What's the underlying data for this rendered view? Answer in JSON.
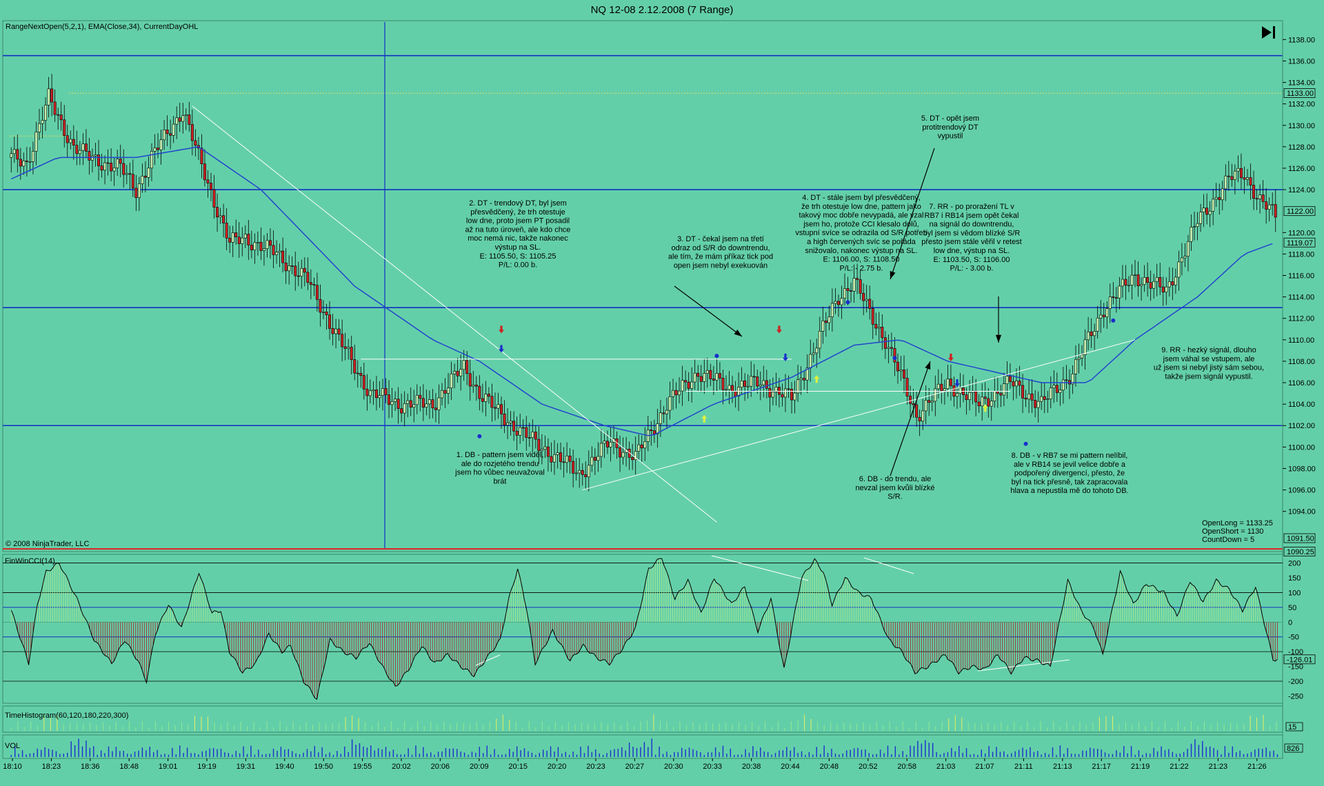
{
  "window": {
    "title": "NQ 12-08  2.12.2008 (7 Range)",
    "price_indicators": "RangeNextOpen(5,2,1), EMA(Close,34), CurrentDayOHL",
    "copyright": "© 2008 NinjaTrader, LLC",
    "cci_label": "FinWinCCI(14)",
    "histogram_label": "TimeHistogram(60,120,180,220,300)",
    "vol_label": "VOL",
    "stats": [
      "OpenLong = 1133.25",
      "OpenShort = 1130",
      "CountDown = 5"
    ]
  },
  "colors": {
    "background": "#63cfa9",
    "up_candle": "#c8f0b0",
    "down_candle": "#cc2222",
    "ema": "#2244cc",
    "sr_line": "#1030c0",
    "open_line": "#e0e060",
    "low_line": "#e02020",
    "cci_pos": "#a8e890",
    "cci_neg": "#a03030",
    "volume": "#1a2ecc"
  },
  "chart_data": [
    {
      "type": "line",
      "panel": "price",
      "title": "NQ 12-08  2.12.2008 (7 Range)",
      "x_ticks": [
        "18:10",
        "18:23",
        "18:36",
        "18:48",
        "19:01",
        "19:19",
        "19:31",
        "19:40",
        "19:50",
        "19:55",
        "20:02",
        "20:06",
        "20:09",
        "20:15",
        "20:20",
        "20:23",
        "20:27",
        "20:30",
        "20:33",
        "20:38",
        "20:44",
        "20:48",
        "20:52",
        "20:58",
        "21:03",
        "21:07",
        "21:11",
        "21:13",
        "21:17",
        "21:19",
        "21:22",
        "21:23",
        "21:26"
      ],
      "ylim": [
        1090.25,
        1139.5
      ],
      "y_ticks": [
        "1094.00",
        "1096.00",
        "1098.00",
        "1100.00",
        "1102.00",
        "1104.00",
        "1106.00",
        "1108.00",
        "1110.00",
        "1112.00",
        "1114.00",
        "1116.00",
        "1118.00",
        "1120.00",
        "1124.00",
        "1126.00",
        "1128.00",
        "1130.00",
        "1132.00",
        "1134.00",
        "1136.00",
        "1138.00"
      ],
      "price_tags": [
        {
          "value": 1133.0,
          "label": "1133.00"
        },
        {
          "value": 1122.0,
          "label": "1122.00"
        },
        {
          "value": 1119.07,
          "label": "1119.07"
        },
        {
          "value": 1091.5,
          "label": "1091.50"
        },
        {
          "value": 1090.25,
          "label": "1090.25"
        }
      ],
      "sr_levels": [
        1136.5,
        1124.0,
        1113.0,
        1102.0
      ],
      "open_level": 1133.0,
      "day_low": 1090.5,
      "close_path": [
        [
          0,
          1127
        ],
        [
          5,
          1126.5
        ],
        [
          12,
          1132.5
        ],
        [
          20,
          1128
        ],
        [
          25,
          1127
        ],
        [
          35,
          1126
        ],
        [
          40,
          1124
        ],
        [
          45,
          1127
        ],
        [
          55,
          1131.5
        ],
        [
          60,
          1127
        ],
        [
          70,
          1119
        ],
        [
          75,
          1119.5
        ],
        [
          85,
          1118
        ],
        [
          95,
          1115.5
        ],
        [
          105,
          1110
        ],
        [
          115,
          1105
        ],
        [
          125,
          1104
        ],
        [
          135,
          1104
        ],
        [
          145,
          1107.5
        ],
        [
          150,
          1105
        ],
        [
          155,
          1103.5
        ],
        [
          165,
          1101
        ],
        [
          175,
          1099
        ],
        [
          182,
          1097.5
        ],
        [
          192,
          1100.5
        ],
        [
          200,
          1099
        ],
        [
          210,
          1104
        ],
        [
          220,
          1107
        ],
        [
          230,
          1105.5
        ],
        [
          240,
          1106
        ],
        [
          250,
          1104.5
        ],
        [
          260,
          1111
        ],
        [
          265,
          1114
        ],
        [
          270,
          1115.5
        ],
        [
          275,
          1112.5
        ],
        [
          280,
          1110
        ],
        [
          290,
          1103
        ],
        [
          300,
          1106
        ],
        [
          310,
          1104
        ],
        [
          320,
          1106
        ],
        [
          330,
          1104
        ],
        [
          340,
          1107
        ],
        [
          350,
          1113
        ],
        [
          360,
          1116
        ],
        [
          370,
          1114.5
        ],
        [
          380,
          1121
        ],
        [
          390,
          1125
        ],
        [
          395,
          1125.5
        ],
        [
          400,
          1123
        ],
        [
          405,
          1121.5
        ]
      ],
      "ema_path": [
        [
          0,
          1125
        ],
        [
          15,
          1127
        ],
        [
          40,
          1127
        ],
        [
          60,
          1128
        ],
        [
          80,
          1124
        ],
        [
          110,
          1115
        ],
        [
          135,
          1110
        ],
        [
          150,
          1108
        ],
        [
          170,
          1104
        ],
        [
          190,
          1102
        ],
        [
          205,
          1101
        ],
        [
          225,
          1104
        ],
        [
          250,
          1106.5
        ],
        [
          270,
          1109.5
        ],
        [
          285,
          1110
        ],
        [
          300,
          1108
        ],
        [
          330,
          1106
        ],
        [
          345,
          1106
        ],
        [
          360,
          1110
        ],
        [
          380,
          1114
        ],
        [
          395,
          1118
        ],
        [
          405,
          1119.07
        ]
      ],
      "annotations": [
        "1. DB - pattern jsem viděl,\nale do rozjetého trendu\njsem ho vůbec neuvažoval\nbrát",
        "2. DT - trendový DT, byl jsem\npřesvědčený, že trh otestuje\nlow dne, proto jsem PT posadil\naž na tuto úroveň, ale kdo chce\nmoc nemá nic, takže nakonec\nvýstup na SL.\n\nE: 1105.50, S: 1105.25\n\nP/L: 0.00 b.",
        "3. DT - čekal jsem na třetí\nodraz od S/R do downtrendu,\nale tím, že mám příkaz tick pod\nopen jsem nebyl exekuován",
        "4. DT - stále jsem byl přesvědčený,\nže trh otestuje low dne, pattern jako\ntakový moc dobře nevypadá, ale vzal\njsem ho, protože CCI klesalo dolů,\nvstupní svíce se odrazila od S/R potřetí\na high červených svíc se pořáda\nsnižovalo, nakonec výstup na SL.\n\nE: 1106.00, S: 1108.50\n\nP/L: - 2.75 b.",
        "5. DT - opět jsem\nprotitrendový DT\nvypustil",
        "6. DB - do trendu, ale\nnevzal jsem kvůli blízké\nS/R.",
        "7. RR - po proražení TL v\nRB7 i RB14 jsem opět čekal\nna signál do downtrendu,\nbyl jsem si vědom blízké S/R\npřesto jsem stále věřil v retest\nlow dne, výstup na SL.\n\nE: 1103.50, S: 1106.00\n\nP/L: - 3.00 b.",
        "8. DB - v RB7 se mi pattern nelíbil,\nale v RB14 se jevil velice dobře a\npodpořený divergencí, přesto, že\nbyl na tick přesně, tak zapracovala\nhlava a nepustila mě do tohoto DB.",
        "9. RR - hezký signál, dlouho\njsem váhal se vstupem, ale\nuž jsem si nebyl jistý sám sebou,\ntakže jsem signál vypustil."
      ]
    },
    {
      "type": "bar",
      "panel": "cci",
      "ylim": [
        -270,
        220
      ],
      "y_ticks": [
        "200",
        "150",
        "100",
        "50",
        "0",
        "-50",
        "-100",
        "-150",
        "-200",
        "-250"
      ],
      "last_value": "-126.01",
      "path": [
        [
          0,
          40
        ],
        [
          4,
          -50
        ],
        [
          8,
          -140
        ],
        [
          12,
          60
        ],
        [
          16,
          170
        ],
        [
          22,
          200
        ],
        [
          30,
          80
        ],
        [
          38,
          -60
        ],
        [
          46,
          -140
        ],
        [
          52,
          -60
        ],
        [
          58,
          -130
        ],
        [
          62,
          -200
        ],
        [
          66,
          -40
        ],
        [
          72,
          60
        ],
        [
          78,
          -20
        ],
        [
          86,
          170
        ],
        [
          92,
          30
        ],
        [
          96,
          40
        ],
        [
          100,
          -100
        ],
        [
          106,
          -170
        ],
        [
          112,
          -140
        ],
        [
          118,
          -40
        ],
        [
          124,
          -100
        ],
        [
          128,
          -80
        ],
        [
          134,
          -200
        ],
        [
          140,
          -260
        ],
        [
          146,
          -60
        ],
        [
          152,
          -100
        ],
        [
          158,
          -120
        ],
        [
          164,
          -70
        ],
        [
          170,
          -150
        ],
        [
          176,
          -220
        ],
        [
          182,
          -160
        ],
        [
          188,
          -80
        ],
        [
          194,
          -140
        ],
        [
          200,
          -110
        ],
        [
          206,
          -150
        ],
        [
          212,
          -180
        ],
        [
          218,
          -120
        ],
        [
          224,
          -60
        ],
        [
          228,
          80
        ],
        [
          232,
          180
        ],
        [
          236,
          50
        ],
        [
          240,
          -140
        ],
        [
          248,
          -30
        ],
        [
          256,
          -130
        ],
        [
          262,
          -80
        ],
        [
          268,
          -120
        ],
        [
          274,
          -140
        ],
        [
          280,
          -90
        ],
        [
          286,
          -20
        ],
        [
          292,
          180
        ],
        [
          298,
          220
        ],
        [
          304,
          80
        ],
        [
          310,
          140
        ],
        [
          316,
          30
        ],
        [
          322,
          150
        ],
        [
          330,
          60
        ],
        [
          336,
          120
        ],
        [
          342,
          -30
        ],
        [
          348,
          80
        ],
        [
          354,
          -160
        ],
        [
          362,
          150
        ],
        [
          368,
          210
        ],
        [
          372,
          170
        ],
        [
          376,
          60
        ],
        [
          382,
          150
        ],
        [
          388,
          100
        ],
        [
          394,
          80
        ],
        [
          402,
          -60
        ],
        [
          408,
          -100
        ],
        [
          414,
          -170
        ],
        [
          420,
          -150
        ],
        [
          428,
          -110
        ],
        [
          434,
          -170
        ],
        [
          440,
          -150
        ],
        [
          446,
          -160
        ],
        [
          452,
          -110
        ],
        [
          458,
          -170
        ],
        [
          464,
          -120
        ],
        [
          470,
          -130
        ],
        [
          476,
          -150
        ],
        [
          484,
          140
        ],
        [
          490,
          40
        ],
        [
          496,
          -20
        ],
        [
          500,
          -110
        ],
        [
          508,
          170
        ],
        [
          514,
          60
        ],
        [
          520,
          130
        ],
        [
          528,
          100
        ],
        [
          534,
          20
        ],
        [
          540,
          140
        ],
        [
          546,
          70
        ],
        [
          552,
          140
        ],
        [
          558,
          110
        ],
        [
          564,
          40
        ],
        [
          570,
          120
        ],
        [
          578,
          -126
        ]
      ]
    },
    {
      "type": "bar",
      "panel": "volume",
      "last_value": "826"
    }
  ]
}
